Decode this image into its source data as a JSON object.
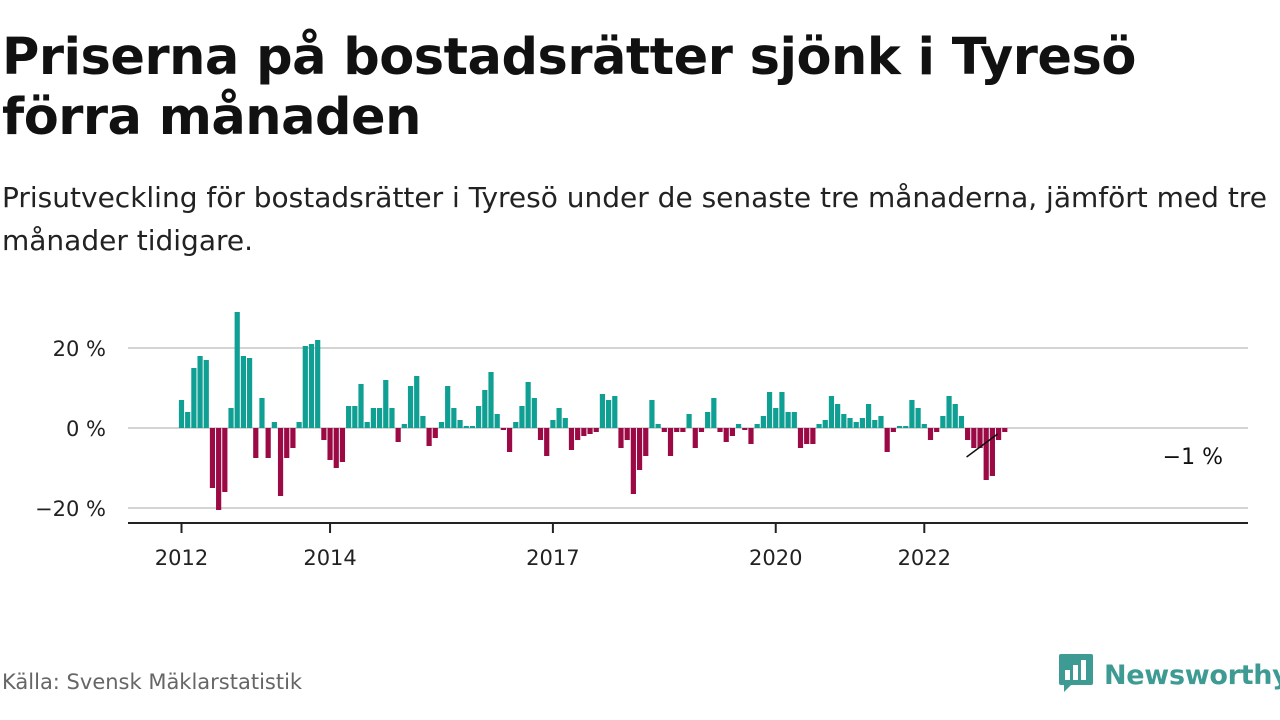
{
  "title": "Priserna på bostadsrätter sjönk i Tyresö förra månaden",
  "subtitle": "Prisutveckling för bostadsrätter i Tyresö under de senaste tre månaderna, jämfört med tre månader tidigare.",
  "source": "Källa: Svensk Mäklarstatistik",
  "brand": "Newsworthy",
  "colors": {
    "positive": "#0f9f93",
    "negative": "#9b0a45",
    "grid": "#d4d4d4",
    "axis": "#222222",
    "brand": "#3d9b93"
  },
  "icons": {
    "brand_logo": "bar-chart-speech-bubble-icon"
  },
  "chart_data": {
    "type": "bar",
    "title": "Priserna på bostadsrätter sjönk i Tyresö förra månaden",
    "subtitle": "Prisutveckling för bostadsrätter i Tyresö under de senaste tre månaderna, jämfört med tre månader tidigare.",
    "xlabel": "",
    "ylabel": "",
    "x_start": "2012-01",
    "x_ticks": [
      "2012-01",
      "2014-01",
      "2017-01",
      "2020-01",
      "2022-01"
    ],
    "x_tick_labels": [
      "2012",
      "2014",
      "2017",
      "2020",
      "2022"
    ],
    "ylim": [
      -23,
      30
    ],
    "yticks": [
      -20,
      0,
      20
    ],
    "ytick_labels": [
      "−20 %",
      "0 %",
      "20 %"
    ],
    "grid": true,
    "legend": "none",
    "annotation": {
      "x": "2023-01",
      "value": -1,
      "label": "−1 %"
    },
    "series": [
      {
        "values": [
          7,
          4,
          15,
          18,
          17,
          -15,
          -20.5,
          -16,
          5,
          29,
          18,
          17.5,
          -7.5,
          7.5,
          -7.5,
          1.5,
          -17,
          -7.5,
          -5,
          1.5,
          20.5,
          21,
          22,
          -3,
          -8,
          -10,
          -8.5,
          5.5,
          5.5,
          11,
          1.5,
          5,
          5,
          12,
          5,
          -3.5,
          1,
          10.5,
          13,
          3,
          -4.5,
          -2.5,
          1.5,
          10.5,
          5,
          2,
          0.5,
          0.5,
          5.5,
          9.5,
          14,
          3.5,
          -0.5,
          -6,
          1.5,
          5.5,
          11.5,
          7.5,
          -3,
          -7,
          2,
          5,
          2.5,
          -5.5,
          -3,
          -2,
          -1.5,
          -1,
          8.5,
          7,
          8,
          -5,
          -3,
          -16.5,
          -10.5,
          -7,
          7,
          1,
          -1,
          -7,
          -1,
          -1,
          3.5,
          -5,
          -1,
          4,
          7.5,
          -1,
          -3.5,
          -2,
          1,
          -0.5,
          -4,
          1,
          3,
          9,
          5,
          9,
          4,
          4,
          -5,
          -4,
          -4,
          1,
          2,
          8,
          6,
          3.5,
          2.5,
          1.5,
          2.5,
          6,
          2,
          3,
          -6,
          -1,
          0.5,
          0.5,
          7,
          5,
          1,
          -3,
          -1,
          3,
          8,
          6,
          3,
          -3,
          -5,
          -5,
          -13,
          -12,
          -3,
          -1
        ]
      }
    ]
  }
}
